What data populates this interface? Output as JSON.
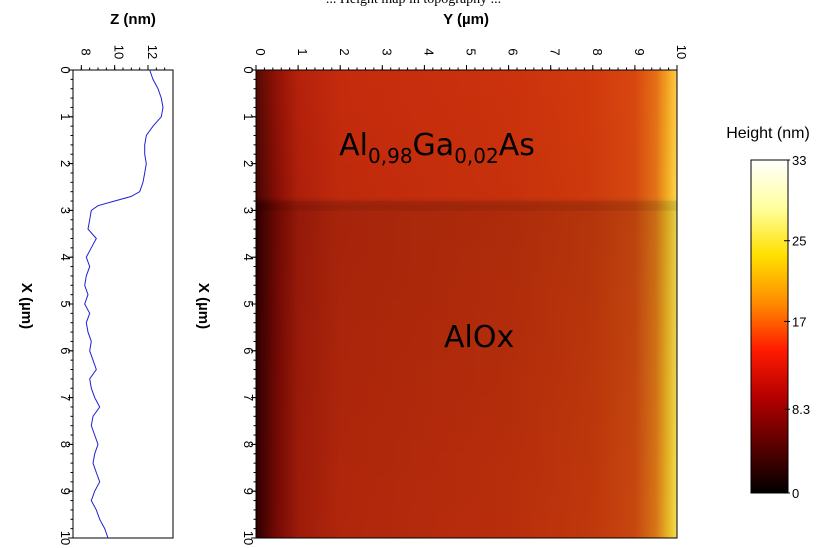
{
  "caption_fragment": "... Height map in topography ...",
  "chart_data": [
    {
      "type": "line",
      "xlabel": "Z (nm)",
      "ylabel": "X (µm)",
      "x_range": [
        7.5,
        13.5
      ],
      "y_range": [
        0,
        10
      ],
      "x_ticks": [
        "8",
        "10",
        "12"
      ],
      "y_ticks": [
        "0",
        "1",
        "2",
        "3",
        "4",
        "5",
        "6",
        "7",
        "8",
        "9",
        "10"
      ],
      "line_color": "#1f1fd6",
      "series": [
        {
          "x_um": [
            0,
            0.2,
            0.4,
            0.6,
            0.8,
            1.0,
            1.2,
            1.4,
            1.6,
            1.8,
            2.0,
            2.2,
            2.4,
            2.6,
            2.7,
            2.8,
            2.9,
            3.0,
            3.2,
            3.4,
            3.6,
            3.8,
            4.0,
            4.2,
            4.4,
            4.6,
            4.8,
            5.0,
            5.2,
            5.4,
            5.6,
            5.8,
            6.0,
            6.2,
            6.4,
            6.6,
            6.8,
            7.0,
            7.2,
            7.4,
            7.6,
            7.8,
            8.0,
            8.2,
            8.4,
            8.6,
            8.8,
            9.0,
            9.2,
            9.4,
            9.6,
            9.8,
            10.0
          ],
          "z_nm": [
            12.1,
            12.3,
            12.6,
            12.8,
            12.9,
            12.8,
            12.3,
            11.9,
            11.8,
            11.8,
            11.9,
            11.8,
            11.7,
            11.5,
            11.0,
            10.0,
            9.0,
            8.6,
            8.5,
            8.4,
            8.9,
            8.6,
            8.3,
            8.5,
            8.3,
            8.2,
            8.4,
            8.2,
            8.5,
            8.3,
            8.4,
            8.6,
            8.5,
            8.7,
            8.9,
            8.5,
            8.6,
            8.8,
            9.1,
            8.7,
            8.6,
            8.8,
            9.0,
            8.8,
            8.7,
            8.9,
            9.1,
            8.8,
            8.6,
            8.9,
            9.1,
            9.4,
            9.6
          ]
        }
      ]
    },
    {
      "type": "heatmap",
      "xlabel": "Y (µm)",
      "ylabel": "X (µm)",
      "x_ticks": [
        "0",
        "1",
        "2",
        "3",
        "4",
        "5",
        "6",
        "7",
        "8",
        "9",
        "10"
      ],
      "y_ticks": [
        "0",
        "1",
        "2",
        "3",
        "4",
        "5",
        "6",
        "7",
        "8",
        "9",
        "10"
      ],
      "x_range": [
        0,
        10
      ],
      "y_range": [
        0,
        10
      ],
      "annotations": [
        {
          "base1": "Al",
          "sub1": "0,98",
          "base2": "Ga",
          "sub2": "0,02",
          "base3": "As",
          "x_um": 4.3,
          "y_um": 1.6
        },
        {
          "text": "AlOx",
          "x_um": 5.3,
          "y_um": 5.7
        }
      ],
      "profile_y_um": [
        0.0,
        0.5,
        1.0,
        2.0,
        4.0,
        6.0,
        8.0,
        9.0,
        9.5,
        9.8,
        10.0
      ],
      "profile_colors": [
        "#300000",
        "#7a0a04",
        "#a41c0a",
        "#b8280c",
        "#bc2c0c",
        "#c0300c",
        "#c83a0c",
        "#d04a10",
        "#e07a18",
        "#f2c028",
        "#fde85a"
      ],
      "upper_region_x_um": 2.9
    },
    {
      "type": "colorbar",
      "title": "Height (nm)",
      "tick_labels": [
        "0",
        "8.3",
        "17",
        "25",
        "33"
      ],
      "range": [
        0,
        33
      ],
      "gradient_colors": [
        "#000000",
        "#5a0000",
        "#b40000",
        "#ff1a00",
        "#ff8c00",
        "#ffe000",
        "#ffffa0",
        "#ffffff"
      ]
    }
  ]
}
